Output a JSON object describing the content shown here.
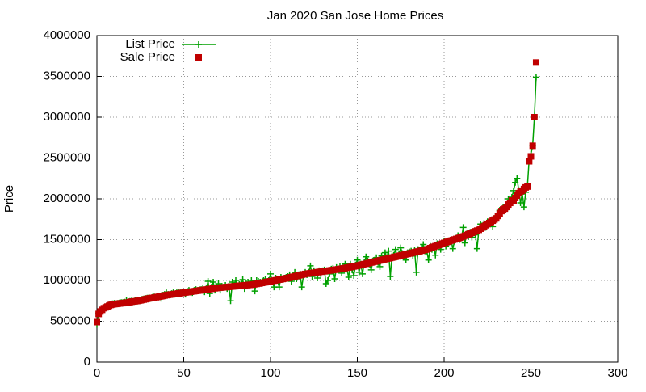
{
  "chart_data": {
    "type": "scatter",
    "title": "Jan 2020 San Jose Home Prices",
    "y_label": "Price",
    "grid": true,
    "legend": "top-left",
    "xlim": [
      0,
      300
    ],
    "xticks": [
      0,
      50,
      100,
      150,
      200,
      250,
      300
    ],
    "ylim": [
      0,
      4000000
    ],
    "yticks": [
      0,
      500000,
      1000000,
      1500000,
      2000000,
      2500000,
      3000000,
      3500000,
      4000000
    ],
    "x": [
      0,
      1,
      2,
      3,
      4,
      5,
      6,
      7,
      8,
      9,
      10,
      11,
      12,
      13,
      14,
      15,
      16,
      17,
      18,
      19,
      20,
      21,
      22,
      23,
      24,
      25,
      26,
      27,
      28,
      29,
      30,
      31,
      32,
      33,
      34,
      35,
      36,
      37,
      38,
      39,
      40,
      41,
      42,
      43,
      44,
      45,
      46,
      47,
      48,
      49,
      50,
      51,
      52,
      53,
      54,
      55,
      56,
      57,
      58,
      59,
      60,
      61,
      62,
      63,
      64,
      65,
      66,
      67,
      68,
      69,
      70,
      71,
      72,
      73,
      74,
      75,
      76,
      77,
      78,
      79,
      80,
      81,
      82,
      83,
      84,
      85,
      86,
      87,
      88,
      89,
      90,
      91,
      92,
      93,
      94,
      95,
      96,
      97,
      98,
      99,
      100,
      101,
      102,
      103,
      104,
      105,
      106,
      107,
      108,
      109,
      110,
      111,
      112,
      113,
      114,
      115,
      116,
      117,
      118,
      119,
      120,
      121,
      122,
      123,
      124,
      125,
      126,
      127,
      128,
      129,
      130,
      131,
      132,
      133,
      134,
      135,
      136,
      137,
      138,
      139,
      140,
      141,
      142,
      143,
      144,
      145,
      146,
      147,
      148,
      149,
      150,
      151,
      152,
      153,
      154,
      155,
      156,
      157,
      158,
      159,
      160,
      161,
      162,
      163,
      164,
      165,
      166,
      167,
      168,
      169,
      170,
      171,
      172,
      173,
      174,
      175,
      176,
      177,
      178,
      179,
      180,
      181,
      182,
      183,
      184,
      185,
      186,
      187,
      188,
      189,
      190,
      191,
      192,
      193,
      194,
      195,
      196,
      197,
      198,
      199,
      200,
      201,
      202,
      203,
      204,
      205,
      206,
      207,
      208,
      209,
      210,
      211,
      212,
      213,
      214,
      215,
      216,
      217,
      218,
      219,
      220,
      221,
      222,
      223,
      224,
      225,
      226,
      227,
      228,
      229,
      230,
      231,
      232,
      233,
      234,
      235,
      236,
      237,
      238,
      239,
      240,
      241,
      242,
      243,
      244,
      245,
      246,
      247,
      248,
      249,
      250,
      251,
      252,
      253
    ],
    "series": [
      {
        "name": "List Price",
        "color": "#00a000",
        "mode": "linespoints",
        "values": [
          460000,
          600000,
          630000,
          650000,
          670000,
          680000,
          690000,
          700000,
          710000,
          715000,
          720000,
          715000,
          720000,
          725000,
          730000,
          730000,
          735000,
          760000,
          740000,
          745000,
          750000,
          740000,
          755000,
          745000,
          760000,
          750000,
          770000,
          775000,
          780000,
          785000,
          790000,
          780000,
          795000,
          800000,
          790000,
          805000,
          800000,
          780000,
          820000,
          830000,
          850000,
          830000,
          820000,
          840000,
          850000,
          830000,
          850000,
          860000,
          850000,
          860000,
          860000,
          830000,
          870000,
          880000,
          860000,
          850000,
          880000,
          890000,
          880000,
          890000,
          890000,
          900000,
          860000,
          900000,
          990000,
          840000,
          920000,
          980000,
          880000,
          920000,
          960000,
          880000,
          930000,
          920000,
          940000,
          900000,
          930000,
          750000,
          980000,
          940000,
          1000000,
          930000,
          950000,
          960000,
          1010000,
          900000,
          960000,
          980000,
          950000,
          1000000,
          960000,
          870000,
          1000000,
          990000,
          980000,
          970000,
          1000000,
          1020000,
          980000,
          1000000,
          1080000,
          990000,
          920000,
          1030000,
          1000000,
          920000,
          1040000,
          1020000,
          1030000,
          1040000,
          1050000,
          1070000,
          990000,
          1060000,
          1100000,
          1020000,
          1070000,
          1080000,
          920000,
          1060000,
          1100000,
          1070000,
          1100000,
          1180000,
          1050000,
          1120000,
          1100000,
          1030000,
          1120000,
          1080000,
          1120000,
          1130000,
          960000,
          1000000,
          1080000,
          1140000,
          1150000,
          1020000,
          1160000,
          1130000,
          1170000,
          1090000,
          1150000,
          1200000,
          1140000,
          1040000,
          1200000,
          1130000,
          1060000,
          1190000,
          1250000,
          1100000,
          1200000,
          1080000,
          1220000,
          1290000,
          1240000,
          1200000,
          1130000,
          1240000,
          1250000,
          1280000,
          1220000,
          1170000,
          1300000,
          1260000,
          1340000,
          1280000,
          1360000,
          1050000,
          1300000,
          1310000,
          1380000,
          1290000,
          1320000,
          1400000,
          1330000,
          1300000,
          1250000,
          1340000,
          1350000,
          1360000,
          1300000,
          1370000,
          1100000,
          1380000,
          1370000,
          1400000,
          1440000,
          1360000,
          1360000,
          1250000,
          1420000,
          1380000,
          1400000,
          1310000,
          1450000,
          1430000,
          1380000,
          1460000,
          1480000,
          1420000,
          1460000,
          1470000,
          1500000,
          1390000,
          1480000,
          1520000,
          1550000,
          1500000,
          1520000,
          1650000,
          1460000,
          1570000,
          1540000,
          1590000,
          1530000,
          1600000,
          1560000,
          1390000,
          1620000,
          1690000,
          1660000,
          1700000,
          1650000,
          1720000,
          1710000,
          1740000,
          1660000,
          1760000,
          1780000,
          1800000,
          1860000,
          1840000,
          1900000,
          1860000,
          1920000,
          2000000,
          1950000,
          2020000,
          2100000,
          2200000,
          2250000,
          2100000,
          1950000,
          2060000,
          1900000,
          2080000,
          2160000,
          2490000,
          2550000,
          2650000,
          3000000,
          3490000
        ]
      },
      {
        "name": "Sale Price",
        "color": "#c00000",
        "mode": "points",
        "values": [
          490000,
          590000,
          620000,
          640000,
          660000,
          670000,
          680000,
          690000,
          700000,
          705000,
          710000,
          712000,
          715000,
          718000,
          720000,
          722000,
          725000,
          728000,
          730000,
          735000,
          740000,
          742000,
          745000,
          748000,
          752000,
          756000,
          760000,
          765000,
          770000,
          775000,
          780000,
          783000,
          786000,
          790000,
          794000,
          798000,
          802000,
          806000,
          810000,
          815000,
          820000,
          823000,
          826000,
          829000,
          832000,
          835000,
          838000,
          841000,
          844000,
          847000,
          850000,
          853000,
          856000,
          859000,
          862000,
          865000,
          868000,
          871000,
          874000,
          877000,
          880000,
          883000,
          886000,
          889000,
          892000,
          895000,
          898000,
          901000,
          904000,
          907000,
          910000,
          912000,
          914000,
          916000,
          918000,
          920000,
          922000,
          924000,
          926000,
          928000,
          930000,
          932000,
          934000,
          936000,
          938000,
          940000,
          942000,
          944000,
          946000,
          948000,
          950000,
          954000,
          958000,
          962000,
          966000,
          970000,
          974000,
          978000,
          982000,
          986000,
          990000,
          994000,
          998000,
          1002000,
          1006000,
          1010000,
          1014000,
          1018000,
          1022000,
          1026000,
          1030000,
          1035000,
          1040000,
          1045000,
          1050000,
          1055000,
          1060000,
          1065000,
          1070000,
          1075000,
          1080000,
          1083000,
          1086000,
          1089000,
          1092000,
          1095000,
          1098000,
          1101000,
          1104000,
          1107000,
          1110000,
          1113000,
          1116000,
          1119000,
          1122000,
          1125000,
          1128000,
          1131000,
          1134000,
          1137000,
          1140000,
          1144000,
          1148000,
          1152000,
          1156000,
          1160000,
          1164000,
          1168000,
          1172000,
          1176000,
          1180000,
          1185000,
          1190000,
          1195000,
          1200000,
          1205000,
          1210000,
          1215000,
          1220000,
          1225000,
          1230000,
          1235000,
          1240000,
          1245000,
          1250000,
          1255000,
          1260000,
          1265000,
          1270000,
          1275000,
          1280000,
          1285000,
          1290000,
          1295000,
          1300000,
          1305000,
          1310000,
          1315000,
          1320000,
          1325000,
          1330000,
          1335000,
          1340000,
          1345000,
          1350000,
          1355000,
          1360000,
          1365000,
          1370000,
          1375000,
          1380000,
          1388000,
          1396000,
          1404000,
          1412000,
          1420000,
          1428000,
          1436000,
          1444000,
          1452000,
          1460000,
          1467000,
          1474000,
          1481000,
          1488000,
          1495000,
          1502000,
          1509000,
          1516000,
          1523000,
          1530000,
          1539000,
          1548000,
          1557000,
          1566000,
          1575000,
          1584000,
          1593000,
          1602000,
          1611000,
          1620000,
          1634000,
          1648000,
          1662000,
          1676000,
          1690000,
          1704000,
          1718000,
          1732000,
          1746000,
          1760000,
          1790000,
          1820000,
          1850000,
          1870000,
          1880000,
          1900000,
          1930000,
          1950000,
          1980000,
          1980000,
          2010000,
          2040000,
          2070000,
          2090000,
          2100000,
          2120000,
          2140000,
          2150000,
          2460000,
          2520000,
          2650000,
          3000000,
          3670000
        ]
      }
    ]
  }
}
